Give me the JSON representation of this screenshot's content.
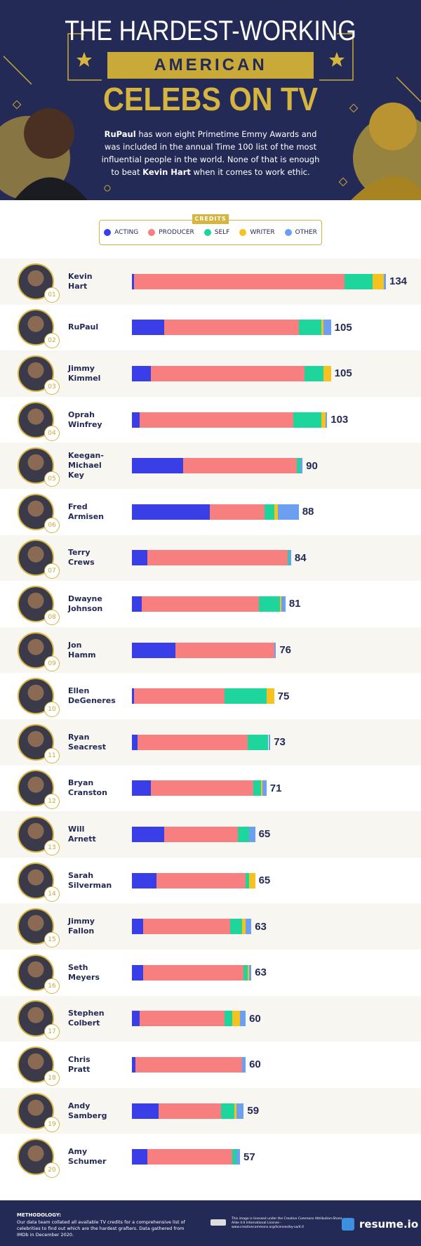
{
  "header": {
    "title_line1": "THE HARDEST-WORKING",
    "title_band": "AMERICAN",
    "title_line3": "CELEBS ON TV",
    "description": [
      {
        "text": "RuPaul",
        "bold": true
      },
      {
        "text": " has won eight Primetime Emmy Awards and was included in the annual Time 100 list of the most influential people in the world. None of that is enough to beat ",
        "bold": false
      },
      {
        "text": "Kevin Hart",
        "bold": true
      },
      {
        "text": " when it comes to work ethic.",
        "bold": false
      }
    ]
  },
  "legend_title": "CREDITS",
  "chart_data": {
    "type": "bar",
    "orientation": "horizontal",
    "stacked": true,
    "categories": [
      "Kevin Hart",
      "RuPaul",
      "Jimmy Kimmel",
      "Oprah Winfrey",
      "Keegan-Michael Key",
      "Fred Armisen",
      "Terry Crews",
      "Dwayne Johnson",
      "Jon Hamm",
      "Ellen DeGeneres",
      "Ryan Seacrest",
      "Bryan Cranston",
      "Will Arnett",
      "Sarah Silverman",
      "Jimmy Fallon",
      "Seth Meyers",
      "Stephen Colbert",
      "Chris Pratt",
      "Andy Samberg",
      "Amy Schumer"
    ],
    "ranks": [
      "01",
      "02",
      "03",
      "04",
      "05",
      "06",
      "07",
      "08",
      "09",
      "10",
      "11",
      "12",
      "13",
      "14",
      "15",
      "16",
      "17",
      "18",
      "19",
      "20"
    ],
    "series": [
      {
        "name": "ACTING",
        "color": "#3a3ee6",
        "values": [
          1,
          17,
          10,
          4,
          27,
          41,
          8,
          5,
          23,
          1,
          3,
          10,
          17,
          13,
          6,
          6,
          4,
          2,
          14,
          8
        ]
      },
      {
        "name": "PRODUCER",
        "color": "#f77f80",
        "values": [
          111,
          71,
          81,
          81,
          60,
          29,
          74,
          62,
          52,
          48,
          58,
          54,
          39,
          47,
          46,
          53,
          45,
          56,
          33,
          45
        ]
      },
      {
        "name": "SELF",
        "color": "#1ed69c",
        "values": [
          15,
          12,
          10,
          15,
          2,
          5,
          1,
          11,
          0,
          22,
          11,
          4,
          6,
          2,
          6,
          2,
          4,
          0,
          7,
          2
        ]
      },
      {
        "name": "WRITER",
        "color": "#f5c21f",
        "values": [
          6,
          1,
          4,
          2,
          0,
          2,
          0,
          1,
          0,
          4,
          0,
          1,
          0,
          3,
          2,
          1,
          4,
          0,
          1,
          0
        ]
      },
      {
        "name": "OTHER",
        "color": "#6c9ff0",
        "values": [
          1,
          4,
          0,
          1,
          1,
          11,
          1,
          2,
          1,
          0,
          1,
          2,
          3,
          0,
          3,
          1,
          3,
          2,
          4,
          2
        ]
      }
    ],
    "totals": [
      134,
      105,
      105,
      103,
      90,
      88,
      84,
      81,
      76,
      75,
      73,
      71,
      65,
      65,
      63,
      63,
      60,
      60,
      59,
      57
    ]
  },
  "footer": {
    "methodology_title": "METHODOLOGY:",
    "methodology_text": "Our data team collated all available TV credits for a comprehensive list of celebrities to find out which are the hardest grafters. Data gathered from IMDb in December 2020.",
    "license": "This image is licensed under the Creative Commons Attribution-Share Alike 4.0 International License - www.creativecommons.org/licenses/by-sa/4.0",
    "logo": "resume.io"
  }
}
